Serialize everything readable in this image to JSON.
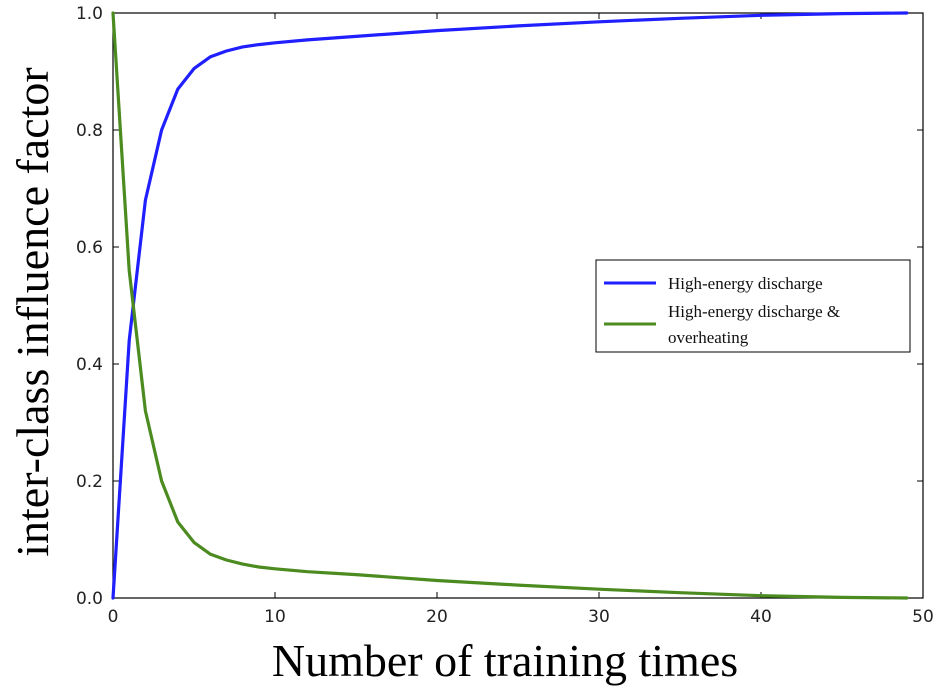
{
  "chart_data": {
    "type": "line",
    "xlabel": "Number of training times",
    "ylabel": "inter-class influence factor",
    "xlim": [
      0,
      50
    ],
    "ylim": [
      0,
      1.0
    ],
    "x_ticks": [
      "0",
      "10",
      "20",
      "30",
      "40",
      "50"
    ],
    "y_ticks": [
      "0.0",
      "0.2",
      "0.4",
      "0.6",
      "0.8",
      "1.0"
    ],
    "grid": false,
    "legend_position": "center-right",
    "series": [
      {
        "name": "High-energy discharge",
        "color": "#1f1fff",
        "x": [
          0,
          1,
          2,
          3,
          4,
          5,
          6,
          7,
          8,
          9,
          10,
          12,
          15,
          20,
          25,
          30,
          35,
          40,
          45,
          49
        ],
        "y": [
          0.0,
          0.44,
          0.68,
          0.8,
          0.87,
          0.905,
          0.925,
          0.935,
          0.942,
          0.946,
          0.949,
          0.954,
          0.96,
          0.97,
          0.978,
          0.985,
          0.991,
          0.996,
          0.999,
          1.0
        ]
      },
      {
        "name": "High-energy discharge & overheating",
        "color": "#4b8b1f",
        "x": [
          0,
          1,
          2,
          3,
          4,
          5,
          6,
          7,
          8,
          9,
          10,
          12,
          15,
          20,
          25,
          30,
          35,
          40,
          45,
          49
        ],
        "y": [
          1.0,
          0.56,
          0.32,
          0.2,
          0.13,
          0.095,
          0.075,
          0.065,
          0.058,
          0.053,
          0.05,
          0.045,
          0.04,
          0.03,
          0.022,
          0.015,
          0.009,
          0.004,
          0.001,
          0.0
        ]
      }
    ],
    "legend": {
      "line1": "High-energy discharge",
      "line2a": "High-energy discharge &",
      "line2b": "overheating"
    }
  }
}
